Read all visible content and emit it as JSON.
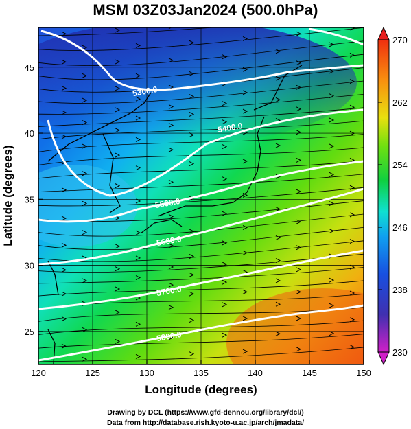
{
  "title": "MSM 03Z03Jan2024 (500.0hPa)",
  "axes": {
    "x_title": "Longitude (degrees)",
    "y_title": "Latitude  (degrees)",
    "x_range": [
      120,
      150
    ],
    "y_range": [
      22.5,
      48
    ],
    "x_ticks": [
      120,
      125,
      130,
      135,
      140,
      145,
      150
    ],
    "y_ticks": [
      25,
      30,
      35,
      40,
      45
    ]
  },
  "colorbar": {
    "min": 230,
    "max": 270,
    "tick_labels": [
      "270",
      "262",
      "254",
      "246",
      "238",
      "230"
    ],
    "tick_values": [
      270,
      262,
      254,
      246,
      238,
      230
    ],
    "colors": [
      "#cc22cc",
      "#2a2ab8",
      "#1060e8",
      "#10b8f0",
      "#10e0a0",
      "#10d040",
      "#80e010",
      "#e8e010",
      "#f89010",
      "#f04010",
      "#e82020"
    ]
  },
  "contours": [
    {
      "label": "5300.0",
      "color": "#ffffff"
    },
    {
      "label": "5400.0",
      "color": "#ffffff"
    },
    {
      "label": "5500.0",
      "color": "#ffffff"
    },
    {
      "label": "5600.0",
      "color": "#ffffff"
    },
    {
      "label": "5700.0",
      "color": "#ffffff"
    },
    {
      "label": "5800.0",
      "color": "#ffffff"
    }
  ],
  "credits": {
    "line1": "Drawing by DCL (https://www.gfd-dennou.org/library/dcl/)",
    "line2": "Data from http://database.rish.kyoto-u.ac.jp/arch/jmadata/"
  }
}
